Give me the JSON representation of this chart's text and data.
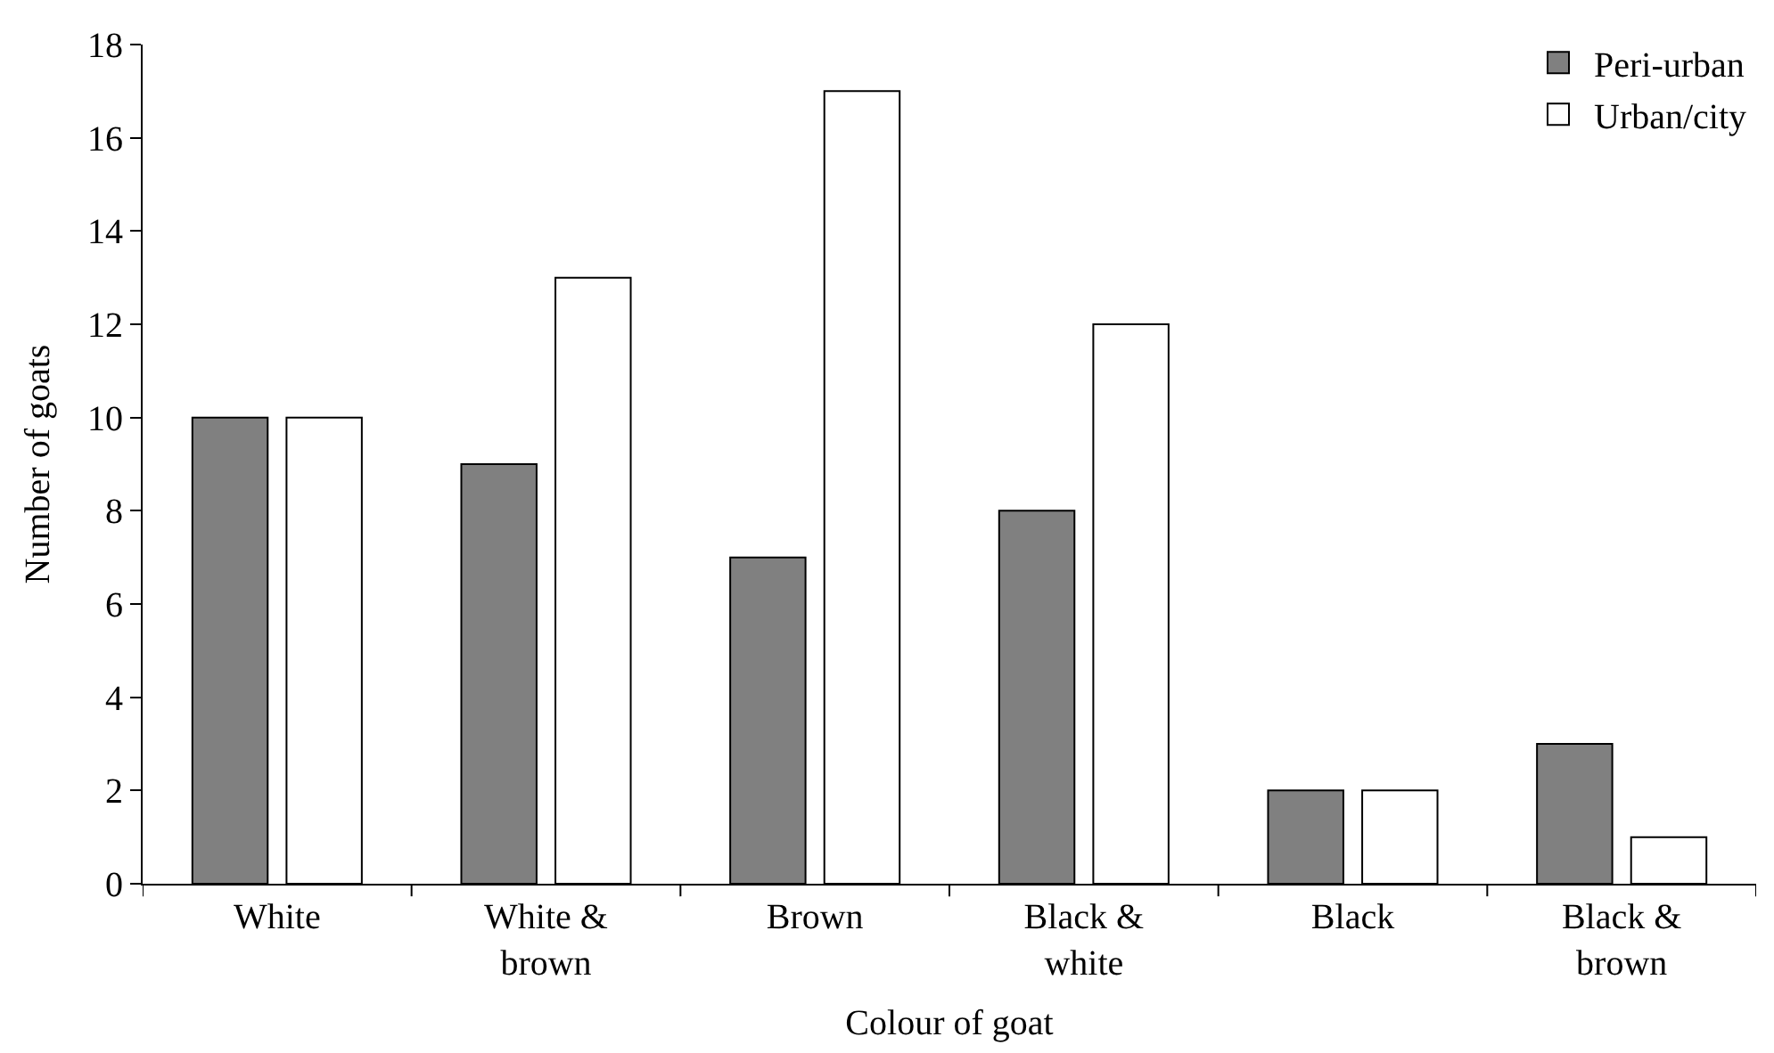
{
  "chart_data": {
    "type": "bar",
    "xlabel": "Colour of goat",
    "ylabel": "Number of goats",
    "categories": [
      "White",
      "White & brown",
      "Brown",
      "Black & white",
      "Black",
      "Black & brown"
    ],
    "series": [
      {
        "name": "Peri-urban",
        "color": "#808080",
        "values": [
          10,
          9,
          7,
          8,
          2,
          3
        ]
      },
      {
        "name": "Urban/city",
        "color": "#ffffff",
        "values": [
          10,
          13,
          17,
          12,
          2,
          1
        ]
      }
    ],
    "ylim": [
      0,
      18
    ],
    "yticks": [
      0,
      2,
      4,
      6,
      8,
      10,
      12,
      14,
      16,
      18
    ],
    "legend": "top right"
  }
}
